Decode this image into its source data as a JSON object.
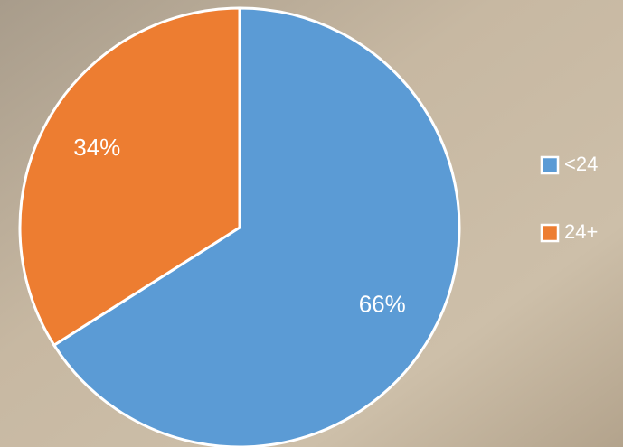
{
  "chart_data": {
    "type": "pie",
    "categories": [
      "<24",
      "24+"
    ],
    "values": [
      66,
      34
    ],
    "value_labels": [
      "66%",
      "34%"
    ],
    "colors": [
      "#5b9bd5",
      "#ed7d31"
    ],
    "legend": "right"
  }
}
